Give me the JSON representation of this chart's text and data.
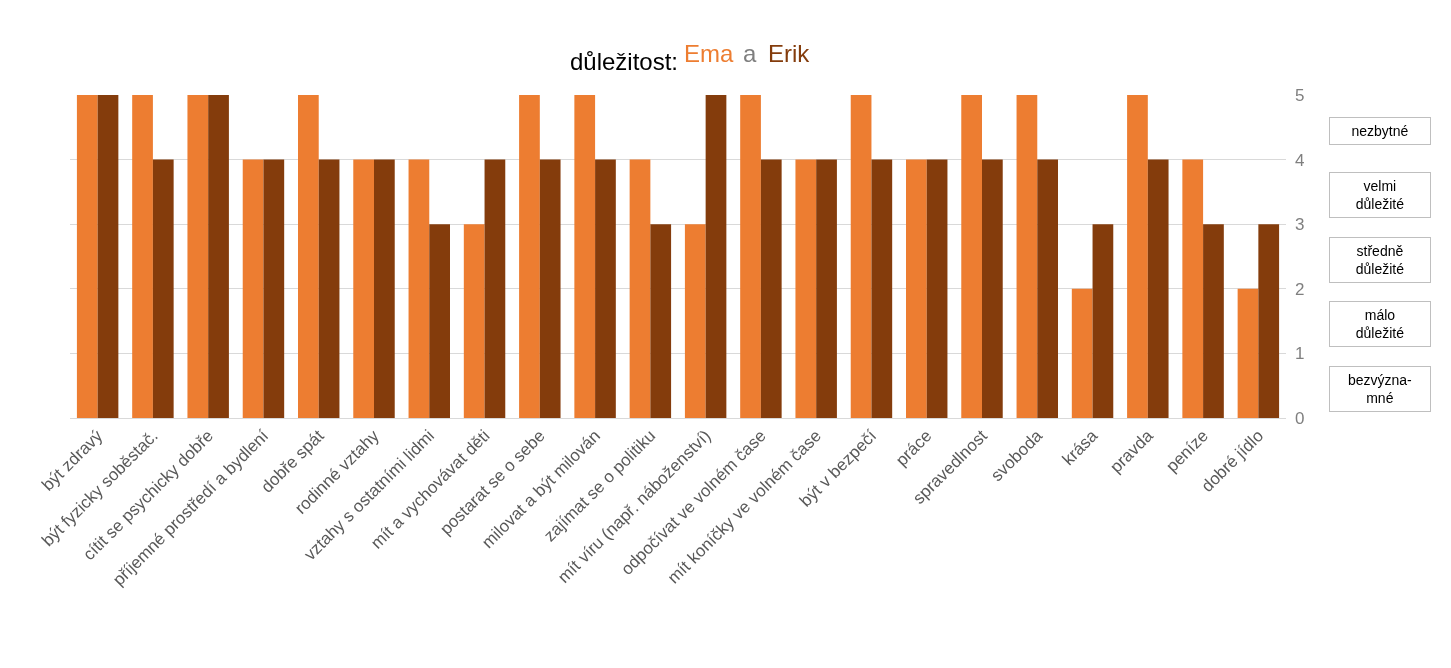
{
  "chart_data": {
    "type": "bar",
    "title": "důležitost:",
    "categories": [
      "být zdravý",
      "být fyzicky soběstač.",
      "cítit se psychicky dobře",
      "příjemné prostředí a bydlení",
      "dobře spát",
      "rodinné vztahy",
      "vztahy s ostatními lidmi",
      "mít a vychovávat děti",
      "postarat se o sebe",
      "milovat a být milován",
      "zajímat se o politiku",
      "mít víru (např. náboženství)",
      "odpočívat ve volném čase",
      "mít koníčky ve volném čase",
      "být v bezpečí",
      "práce",
      "spravedlnost",
      "svoboda",
      "krása",
      "pravda",
      "peníze",
      "dobré jídlo"
    ],
    "series": [
      {
        "name": "Ema",
        "color": "#ed7d31",
        "values": [
          5,
          5,
          5,
          4,
          5,
          4,
          4,
          3,
          5,
          5,
          4,
          3,
          5,
          4,
          5,
          4,
          5,
          5,
          2,
          5,
          4,
          2
        ]
      },
      {
        "name": "Erik",
        "color": "#843c0c",
        "values": [
          5,
          4,
          5,
          4,
          4,
          4,
          3,
          4,
          4,
          4,
          3,
          5,
          4,
          4,
          4,
          4,
          4,
          4,
          3,
          4,
          3,
          3
        ]
      }
    ],
    "ylim": [
      0,
      5
    ],
    "yticks": [
      0,
      1,
      2,
      3,
      4,
      5
    ],
    "grid": "y",
    "legend": false,
    "annotations": [
      "a",
      "nezbytné",
      "velmi důležité",
      "středně důležité",
      "málo důležité",
      "bezvýzna-mné"
    ]
  }
}
